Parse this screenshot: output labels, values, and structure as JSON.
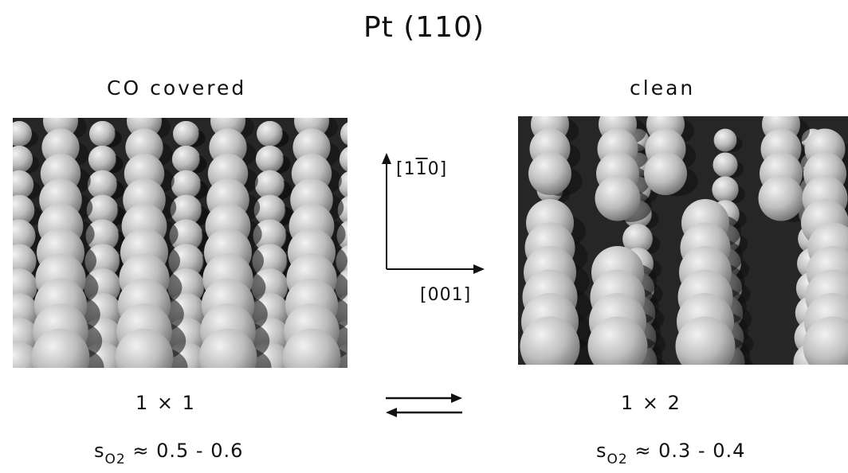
{
  "title": "Pt (110)",
  "left": {
    "label": "CO covered",
    "structure": "1 × 1",
    "sticking": {
      "symbol": "s",
      "subscript": "O",
      "subscript2": "2",
      "relation": " ≈ ",
      "value": "0.5 - 0.6"
    }
  },
  "right": {
    "label": "clean",
    "structure": "1 × 2",
    "sticking": {
      "symbol": "s",
      "subscript": "O",
      "subscript2": "2",
      "relation": " ≈ ",
      "value": "0.3 - 0.4"
    }
  },
  "directions": {
    "vertical": {
      "open": "[1",
      "barred": "1",
      "close": "0]"
    },
    "horizontal": "[001]"
  },
  "colors": {
    "ink": "#111111",
    "panel_dark": "#262626",
    "sphere_light": "#f2f2f2",
    "sphere_dark": "#6e6e6e"
  }
}
